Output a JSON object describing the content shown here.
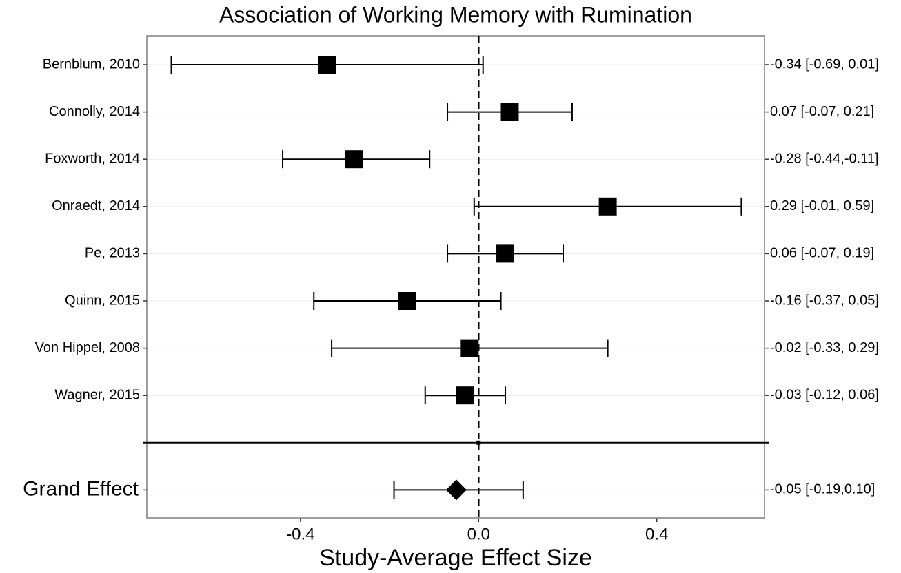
{
  "chart_data": {
    "type": "forest",
    "title": "Association of Working Memory with Rumination",
    "x_label": "Study-Average Effect Size",
    "categories": [
      "Bernblum, 2010",
      "Connolly, 2014",
      "Foxworth, 2014",
      "Onraedt, 2014",
      "Pe, 2013",
      "Quinn, 2015",
      "Von Hippel, 2008",
      "Wagner, 2015"
    ],
    "values": [
      -0.34,
      0.07,
      -0.28,
      0.29,
      0.06,
      -0.16,
      -0.02,
      -0.03
    ],
    "lower": [
      -0.69,
      -0.07,
      -0.44,
      -0.01,
      -0.07,
      -0.37,
      -0.33,
      -0.12
    ],
    "upper": [
      0.01,
      0.21,
      -0.11,
      0.59,
      0.19,
      0.05,
      0.29,
      0.06
    ],
    "value_labels": [
      "-0.34 [-0.69, 0.01]",
      "0.07 [-0.07, 0.21]",
      "-0.28 [-0.44,-0.11]",
      "0.29 [-0.01, 0.59]",
      "0.06 [-0.07, 0.19]",
      "-0.16 [-0.37, 0.05]",
      "-0.02 [-0.33, 0.29]",
      "-0.03 [-0.12, 0.06]"
    ],
    "summary": {
      "label": "Grand Effect",
      "value": -0.05,
      "lower": -0.19,
      "upper": 0.1,
      "value_label": "-0.05 [-0.19,0.10]"
    },
    "reference": 0,
    "xlim": [
      -0.745,
      0.642
    ],
    "xticks": [
      -0.4,
      {
        "value": 0,
        "label": "0.0"
      },
      0.4
    ],
    "color": "#000000",
    "grid": true
  }
}
